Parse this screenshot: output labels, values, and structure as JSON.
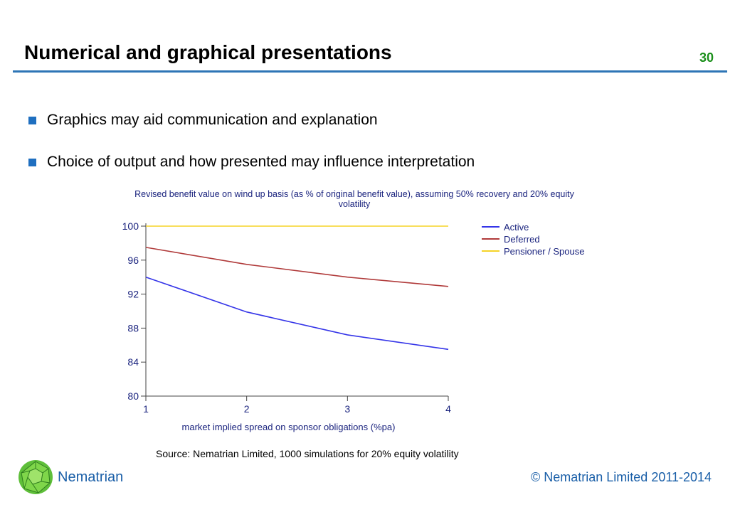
{
  "slide": {
    "title": "Numerical and graphical presentations",
    "number": "30",
    "bullets": [
      "Graphics may aid communication and explanation",
      "Choice of output and how presented may influence interpretation"
    ],
    "source": "Source: Nematrian Limited, 1000 simulations for 20% equity volatility"
  },
  "footer": {
    "brand": "Nematrian",
    "copyright": "© Nematrian Limited 2011-2014",
    "logo_icon": "green-polyhedron-logo-icon"
  },
  "chart_data": {
    "type": "line",
    "title_lines": [
      "Revised benefit value on wind up basis (as % of original benefit value), assuming 50% recovery and 20% equity",
      "volatility"
    ],
    "x": [
      1,
      2,
      3,
      4
    ],
    "x_tick_labels": [
      "1",
      "2",
      "3",
      "4"
    ],
    "xlabel": "market implied spread on sponsor obligations (%pa)",
    "ylabel": "",
    "ylim": [
      80,
      100
    ],
    "y_ticks": [
      80,
      84,
      88,
      92,
      96,
      100
    ],
    "grid": false,
    "legend_position": "right",
    "series": [
      {
        "name": "Active",
        "color": "#3535e8",
        "values": [
          94.0,
          89.9,
          87.2,
          85.5
        ]
      },
      {
        "name": "Deferred",
        "color": "#b03a3a",
        "values": [
          97.5,
          95.5,
          94.0,
          92.9
        ]
      },
      {
        "name": "Pensioner / Spouse",
        "color": "#f5d327",
        "values": [
          100.0,
          100.0,
          100.0,
          100.0
        ]
      }
    ]
  }
}
